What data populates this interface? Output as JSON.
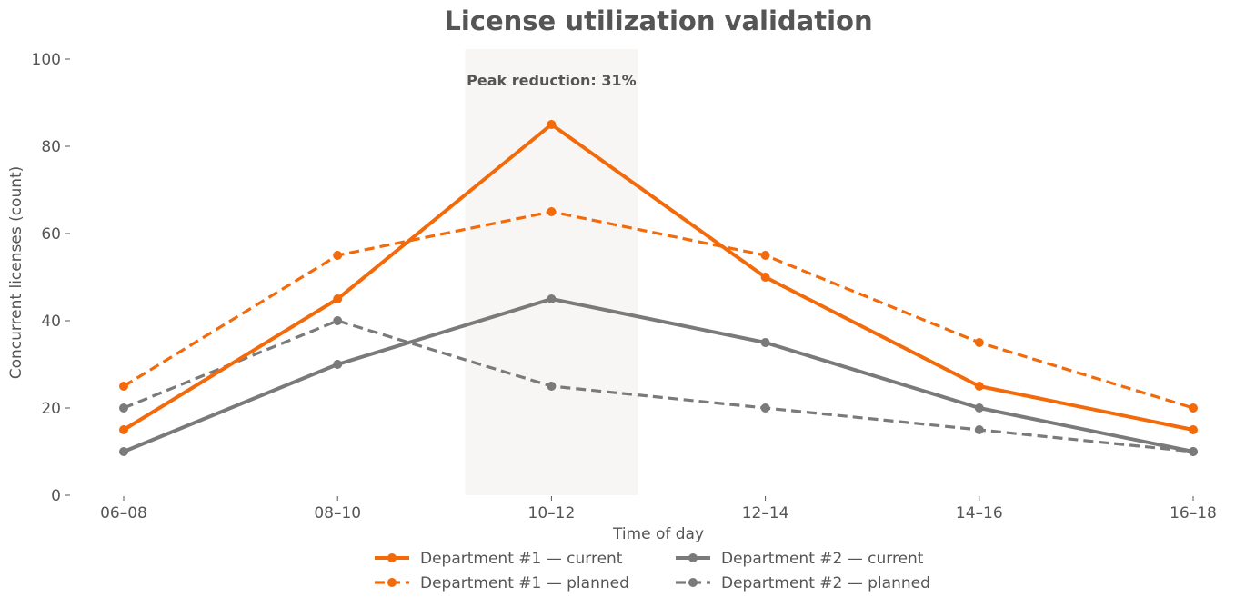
{
  "chart_data": {
    "type": "line",
    "title": "License utilization validation",
    "xlabel": "Time of day",
    "ylabel": "Concurrent licenses (count)",
    "categories": [
      "06–08",
      "08–10",
      "10–12",
      "12–14",
      "14–16",
      "16–18"
    ],
    "ylim": [
      0,
      100
    ],
    "yticks": [
      0,
      20,
      40,
      60,
      80,
      100
    ],
    "grid": false,
    "legend_position": "bottom-center",
    "highlight": {
      "category": "10–12",
      "label": "Peak reduction: 31%"
    },
    "colors": {
      "dept1": "#f26a0a",
      "dept2": "#7a7a7a",
      "highlight_band": "#f7f6f4",
      "text": "#555555"
    },
    "series": [
      {
        "name": "Department #1 — current",
        "values": [
          15,
          45,
          85,
          50,
          25,
          15
        ],
        "color": "#f26a0a",
        "style": "solid"
      },
      {
        "name": "Department #1 — planned",
        "values": [
          25,
          55,
          65,
          55,
          35,
          20
        ],
        "color": "#f26a0a",
        "style": "dashed"
      },
      {
        "name": "Department #2 — current",
        "values": [
          10,
          30,
          45,
          35,
          20,
          10
        ],
        "color": "#7a7a7a",
        "style": "solid"
      },
      {
        "name": "Department #2 — planned",
        "values": [
          20,
          40,
          25,
          20,
          15,
          10
        ],
        "color": "#7a7a7a",
        "style": "dashed"
      }
    ]
  }
}
